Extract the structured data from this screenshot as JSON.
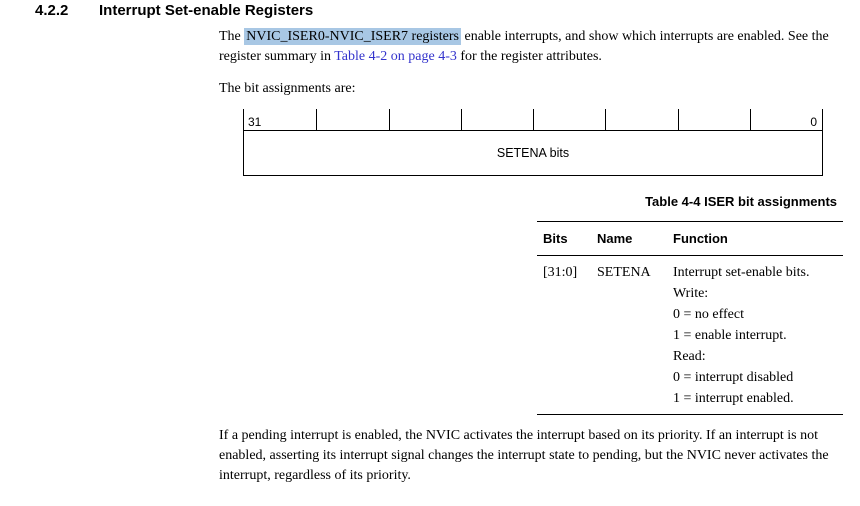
{
  "heading": {
    "section_number": "4.2.2",
    "section_title": "Interrupt Set-enable Registers"
  },
  "intro": {
    "pre": "The ",
    "highlight": "NVIC_ISER0-NVIC_ISER7 registers",
    "mid": " enable interrupts, and show which interrupts are enabled. See the register summary in ",
    "link": "Table 4-2 on page 4-3",
    "post": " for the register attributes."
  },
  "bit_assignments_label": "The bit assignments are:",
  "register_diagram": {
    "high_bit": "31",
    "low_bit": "0",
    "field_label": "SETENA bits",
    "segments": 8
  },
  "table": {
    "caption": "Table 4-4 ISER bit assignments",
    "headers": [
      "Bits",
      "Name",
      "Function"
    ],
    "rows": [
      {
        "bits": "[31:0]",
        "name": "SETENA",
        "function_lines": [
          "Interrupt set-enable bits.",
          "Write:",
          "0 = no effect",
          "1 = enable interrupt.",
          "Read:",
          "0 = interrupt disabled",
          "1 = interrupt enabled."
        ]
      }
    ]
  },
  "closing_paragraph": "If a pending interrupt is enabled, the NVIC activates the interrupt based on its priority. If an interrupt is not enabled, asserting its interrupt signal changes the interrupt state to pending, but the NVIC never activates the interrupt, regardless of its priority.",
  "colors": {
    "highlight": "#a8c7e4",
    "link": "#3333cc",
    "text": "#000000"
  }
}
